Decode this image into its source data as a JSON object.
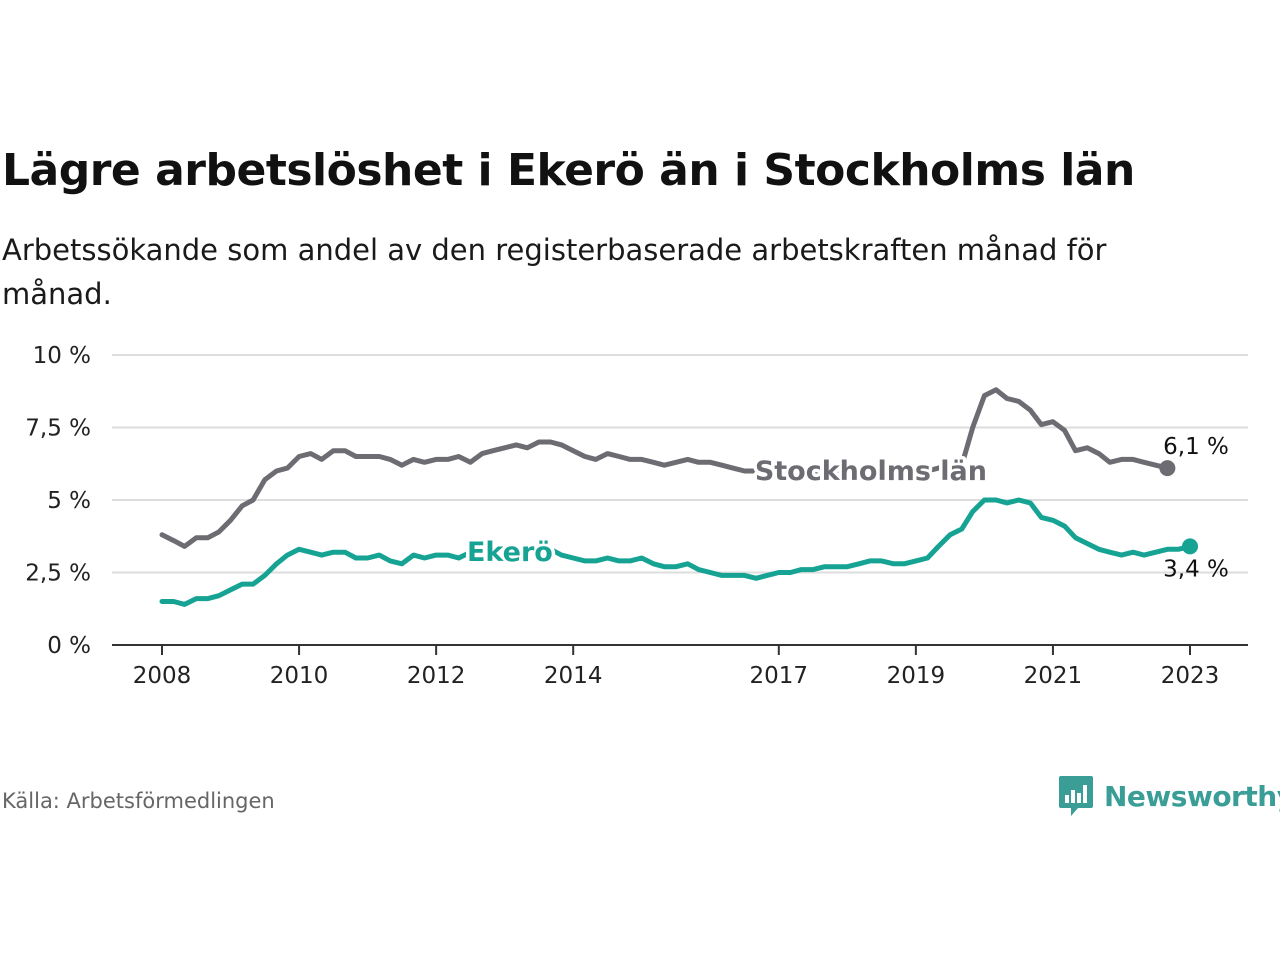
{
  "title": "Lägre arbetslöshet i Ekerö än i Stockholms län",
  "subtitle": "Arbetssökande som andel av den registerbaserade arbetskraften månad för månad.",
  "source": "Källa: Arbetsförmedlingen",
  "brand": {
    "name": "Newsworthy",
    "color": "#3a9e97",
    "icon": "newsworthy-chart-bubble-icon"
  },
  "chart_data": {
    "type": "line",
    "title": "Lägre arbetslöshet i Ekerö än i Stockholms län",
    "xlabel": "",
    "ylabel": "",
    "xlim": [
      2008,
      2023.4
    ],
    "ylim": [
      0,
      10
    ],
    "grid": true,
    "y_ticks": [
      {
        "value": 0,
        "label": "0 %"
      },
      {
        "value": 2.5,
        "label": "2,5 %"
      },
      {
        "value": 5,
        "label": "5 %"
      },
      {
        "value": 7.5,
        "label": "7,5 %"
      },
      {
        "value": 10,
        "label": "10 %"
      }
    ],
    "x_ticks": [
      {
        "value": 2008,
        "label": "2008"
      },
      {
        "value": 2010,
        "label": "2010"
      },
      {
        "value": 2012,
        "label": "2012"
      },
      {
        "value": 2014,
        "label": "2014"
      },
      {
        "value": 2017,
        "label": "2017"
      },
      {
        "value": 2019,
        "label": "2019"
      },
      {
        "value": 2021,
        "label": "2021"
      },
      {
        "value": 2023,
        "label": "2023"
      }
    ],
    "series": [
      {
        "name": "Stockholms län",
        "color": "#6c6c72",
        "last_label": "6,1 %",
        "label_x": 2016.65,
        "label_y": 6.0,
        "points": [
          [
            2008.0,
            3.8
          ],
          [
            2008.17,
            3.6
          ],
          [
            2008.33,
            3.4
          ],
          [
            2008.5,
            3.7
          ],
          [
            2008.67,
            3.7
          ],
          [
            2008.83,
            3.9
          ],
          [
            2009.0,
            4.3
          ],
          [
            2009.17,
            4.8
          ],
          [
            2009.33,
            5.0
          ],
          [
            2009.5,
            5.7
          ],
          [
            2009.67,
            6.0
          ],
          [
            2009.83,
            6.1
          ],
          [
            2010.0,
            6.5
          ],
          [
            2010.17,
            6.6
          ],
          [
            2010.33,
            6.4
          ],
          [
            2010.5,
            6.7
          ],
          [
            2010.67,
            6.7
          ],
          [
            2010.83,
            6.5
          ],
          [
            2011.0,
            6.5
          ],
          [
            2011.17,
            6.5
          ],
          [
            2011.33,
            6.4
          ],
          [
            2011.5,
            6.2
          ],
          [
            2011.67,
            6.4
          ],
          [
            2011.83,
            6.3
          ],
          [
            2012.0,
            6.4
          ],
          [
            2012.17,
            6.4
          ],
          [
            2012.33,
            6.5
          ],
          [
            2012.5,
            6.3
          ],
          [
            2012.67,
            6.6
          ],
          [
            2012.83,
            6.7
          ],
          [
            2013.0,
            6.8
          ],
          [
            2013.17,
            6.9
          ],
          [
            2013.33,
            6.8
          ],
          [
            2013.5,
            7.0
          ],
          [
            2013.67,
            7.0
          ],
          [
            2013.83,
            6.9
          ],
          [
            2014.0,
            6.7
          ],
          [
            2014.17,
            6.5
          ],
          [
            2014.33,
            6.4
          ],
          [
            2014.5,
            6.6
          ],
          [
            2014.67,
            6.5
          ],
          [
            2014.83,
            6.4
          ],
          [
            2015.0,
            6.4
          ],
          [
            2015.17,
            6.3
          ],
          [
            2015.33,
            6.2
          ],
          [
            2015.5,
            6.3
          ],
          [
            2015.67,
            6.4
          ],
          [
            2015.83,
            6.3
          ],
          [
            2016.0,
            6.3
          ],
          [
            2016.17,
            6.2
          ],
          [
            2016.33,
            6.1
          ],
          [
            2016.5,
            6.0
          ],
          [
            2016.67,
            6.0
          ],
          [
            2016.83,
            6.0
          ],
          [
            2017.0,
            6.0
          ],
          [
            2017.17,
            6.0
          ],
          [
            2017.33,
            6.0
          ],
          [
            2017.5,
            6.0
          ],
          [
            2017.67,
            6.0
          ],
          [
            2017.83,
            6.0
          ],
          [
            2018.0,
            6.0
          ],
          [
            2018.17,
            6.0
          ],
          [
            2018.33,
            6.0
          ],
          [
            2018.5,
            6.0
          ],
          [
            2018.67,
            6.0
          ],
          [
            2018.83,
            6.0
          ],
          [
            2019.0,
            6.0
          ],
          [
            2019.17,
            6.0
          ],
          [
            2019.33,
            6.1
          ],
          [
            2019.5,
            6.2
          ],
          [
            2019.67,
            6.2
          ],
          [
            2019.83,
            7.5
          ],
          [
            2020.0,
            8.6
          ],
          [
            2020.17,
            8.8
          ],
          [
            2020.33,
            8.5
          ],
          [
            2020.5,
            8.4
          ],
          [
            2020.67,
            8.1
          ],
          [
            2020.83,
            7.6
          ],
          [
            2021.0,
            7.7
          ],
          [
            2021.17,
            7.4
          ],
          [
            2021.33,
            6.7
          ],
          [
            2021.5,
            6.8
          ],
          [
            2021.67,
            6.6
          ],
          [
            2021.83,
            6.3
          ],
          [
            2022.0,
            6.4
          ],
          [
            2022.17,
            6.4
          ],
          [
            2022.33,
            6.3
          ],
          [
            2022.5,
            6.2
          ],
          [
            2022.67,
            6.1
          ]
        ]
      },
      {
        "name": "Ekerö",
        "color": "#16a394",
        "last_label": "3,4 %",
        "label_x": 2012.45,
        "label_y": 3.2,
        "points": [
          [
            2008.0,
            1.5
          ],
          [
            2008.17,
            1.5
          ],
          [
            2008.33,
            1.4
          ],
          [
            2008.5,
            1.6
          ],
          [
            2008.67,
            1.6
          ],
          [
            2008.83,
            1.7
          ],
          [
            2009.0,
            1.9
          ],
          [
            2009.17,
            2.1
          ],
          [
            2009.33,
            2.1
          ],
          [
            2009.5,
            2.4
          ],
          [
            2009.67,
            2.8
          ],
          [
            2009.83,
            3.1
          ],
          [
            2010.0,
            3.3
          ],
          [
            2010.17,
            3.2
          ],
          [
            2010.33,
            3.1
          ],
          [
            2010.5,
            3.2
          ],
          [
            2010.67,
            3.2
          ],
          [
            2010.83,
            3.0
          ],
          [
            2011.0,
            3.0
          ],
          [
            2011.17,
            3.1
          ],
          [
            2011.33,
            2.9
          ],
          [
            2011.5,
            2.8
          ],
          [
            2011.67,
            3.1
          ],
          [
            2011.83,
            3.0
          ],
          [
            2012.0,
            3.1
          ],
          [
            2012.17,
            3.1
          ],
          [
            2012.33,
            3.0
          ],
          [
            2012.5,
            3.2
          ],
          [
            2012.67,
            3.2
          ],
          [
            2012.83,
            3.3
          ],
          [
            2013.0,
            3.3
          ],
          [
            2013.17,
            3.3
          ],
          [
            2013.33,
            3.3
          ],
          [
            2013.5,
            3.3
          ],
          [
            2013.67,
            3.3
          ],
          [
            2013.83,
            3.1
          ],
          [
            2014.0,
            3.0
          ],
          [
            2014.17,
            2.9
          ],
          [
            2014.33,
            2.9
          ],
          [
            2014.5,
            3.0
          ],
          [
            2014.67,
            2.9
          ],
          [
            2014.83,
            2.9
          ],
          [
            2015.0,
            3.0
          ],
          [
            2015.17,
            2.8
          ],
          [
            2015.33,
            2.7
          ],
          [
            2015.5,
            2.7
          ],
          [
            2015.67,
            2.8
          ],
          [
            2015.83,
            2.6
          ],
          [
            2016.0,
            2.5
          ],
          [
            2016.17,
            2.4
          ],
          [
            2016.33,
            2.4
          ],
          [
            2016.5,
            2.4
          ],
          [
            2016.67,
            2.3
          ],
          [
            2016.83,
            2.4
          ],
          [
            2017.0,
            2.5
          ],
          [
            2017.17,
            2.5
          ],
          [
            2017.33,
            2.6
          ],
          [
            2017.5,
            2.6
          ],
          [
            2017.67,
            2.7
          ],
          [
            2017.83,
            2.7
          ],
          [
            2018.0,
            2.7
          ],
          [
            2018.17,
            2.8
          ],
          [
            2018.33,
            2.9
          ],
          [
            2018.5,
            2.9
          ],
          [
            2018.67,
            2.8
          ],
          [
            2018.83,
            2.8
          ],
          [
            2019.0,
            2.9
          ],
          [
            2019.17,
            3.0
          ],
          [
            2019.33,
            3.4
          ],
          [
            2019.5,
            3.8
          ],
          [
            2019.67,
            4.0
          ],
          [
            2019.83,
            4.6
          ],
          [
            2020.0,
            5.0
          ],
          [
            2020.17,
            5.0
          ],
          [
            2020.33,
            4.9
          ],
          [
            2020.5,
            5.0
          ],
          [
            2020.67,
            4.9
          ],
          [
            2020.83,
            4.4
          ],
          [
            2021.0,
            4.3
          ],
          [
            2021.17,
            4.1
          ],
          [
            2021.33,
            3.7
          ],
          [
            2021.5,
            3.5
          ],
          [
            2021.67,
            3.3
          ],
          [
            2021.83,
            3.2
          ],
          [
            2022.0,
            3.1
          ],
          [
            2022.17,
            3.2
          ],
          [
            2022.33,
            3.1
          ],
          [
            2022.5,
            3.2
          ],
          [
            2022.67,
            3.3
          ],
          [
            2022.83,
            3.3
          ],
          [
            2023.0,
            3.4
          ]
        ]
      }
    ]
  }
}
